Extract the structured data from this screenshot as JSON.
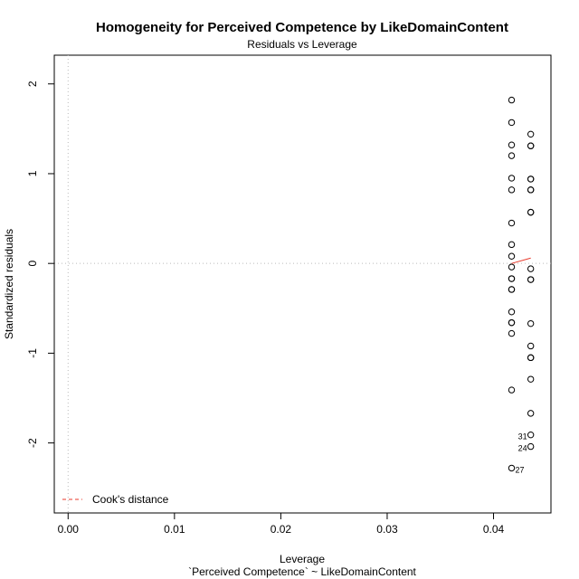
{
  "chart_data": {
    "type": "scatter",
    "title": "Homogeneity for Perceived Competence by LikeDomainContent",
    "subtitle": "Residuals vs Leverage",
    "xlabel": "Leverage",
    "xlabel2": "`Perceived Competence` ~ LikeDomainContent",
    "ylabel": "Standardized residuals",
    "xlim": [
      -0.0013,
      0.0454
    ],
    "ylim": [
      -2.78,
      2.32
    ],
    "x_ticks": [
      0.0,
      0.01,
      0.02,
      0.03,
      0.04
    ],
    "x_tick_labels": [
      "0.00",
      "0.01",
      "0.02",
      "0.03",
      "0.04"
    ],
    "y_ticks": [
      -2,
      -1,
      0,
      1,
      2
    ],
    "y_tick_labels": [
      "-2",
      "-1",
      "0",
      "1",
      "2"
    ],
    "grid": false,
    "reference_lines": {
      "x": 0,
      "y": 0,
      "style": "dotted",
      "color": "#bbbbbb"
    },
    "point_style": "open-circle",
    "points": [
      {
        "x": 0.0417,
        "y": 1.82
      },
      {
        "x": 0.0417,
        "y": 1.57
      },
      {
        "x": 0.0417,
        "y": 1.32
      },
      {
        "x": 0.0417,
        "y": 1.2
      },
      {
        "x": 0.0417,
        "y": 0.95
      },
      {
        "x": 0.0417,
        "y": 0.82
      },
      {
        "x": 0.0417,
        "y": 0.45
      },
      {
        "x": 0.0417,
        "y": 0.21
      },
      {
        "x": 0.0417,
        "y": 0.08
      },
      {
        "x": 0.0417,
        "y": -0.04
      },
      {
        "x": 0.0417,
        "y": -0.17
      },
      {
        "x": 0.0417,
        "y": -0.17
      },
      {
        "x": 0.0417,
        "y": -0.29
      },
      {
        "x": 0.0417,
        "y": -0.29
      },
      {
        "x": 0.0417,
        "y": -0.54
      },
      {
        "x": 0.0417,
        "y": -0.66
      },
      {
        "x": 0.0417,
        "y": -0.66
      },
      {
        "x": 0.0417,
        "y": -0.78
      },
      {
        "x": 0.0417,
        "y": -1.41
      },
      {
        "x": 0.0417,
        "y": -2.28,
        "label": "27"
      },
      {
        "x": 0.0435,
        "y": 1.44
      },
      {
        "x": 0.0435,
        "y": 1.31
      },
      {
        "x": 0.0435,
        "y": 1.31
      },
      {
        "x": 0.0435,
        "y": 0.94
      },
      {
        "x": 0.0435,
        "y": 0.94
      },
      {
        "x": 0.0435,
        "y": 0.82
      },
      {
        "x": 0.0435,
        "y": 0.82
      },
      {
        "x": 0.0435,
        "y": 0.57
      },
      {
        "x": 0.0435,
        "y": 0.57
      },
      {
        "x": 0.0435,
        "y": -0.06
      },
      {
        "x": 0.0435,
        "y": -0.18
      },
      {
        "x": 0.0435,
        "y": -0.18
      },
      {
        "x": 0.0435,
        "y": -0.67
      },
      {
        "x": 0.0435,
        "y": -0.92
      },
      {
        "x": 0.0435,
        "y": -1.05
      },
      {
        "x": 0.0435,
        "y": -1.05
      },
      {
        "x": 0.0435,
        "y": -1.29
      },
      {
        "x": 0.0435,
        "y": -1.67
      },
      {
        "x": 0.0435,
        "y": -1.91,
        "label": "31"
      },
      {
        "x": 0.0435,
        "y": -2.04,
        "label": "24"
      }
    ],
    "smooth_line": {
      "color": "#e8392b",
      "x": [
        0.0417,
        0.0435
      ],
      "y": [
        0.0,
        0.06
      ]
    },
    "legend": {
      "position": "bottom-left",
      "entries": [
        {
          "label": "Cook's distance",
          "color": "#e8392b",
          "style": "dashed"
        }
      ]
    }
  }
}
